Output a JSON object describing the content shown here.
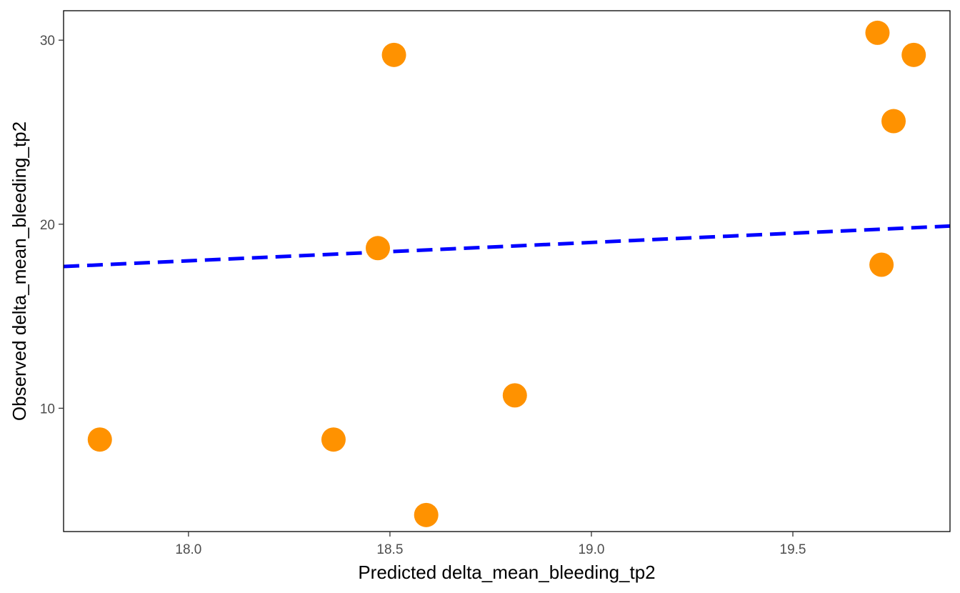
{
  "chart_data": {
    "type": "scatter",
    "title": "",
    "xlabel": "Predicted delta_mean_bleeding_tp2",
    "ylabel": "Observed delta_mean_bleeding_tp2",
    "xlim": [
      17.69,
      19.89
    ],
    "ylim": [
      3.3,
      31.6
    ],
    "x_ticks": [
      18.0,
      18.5,
      19.0,
      19.5
    ],
    "x_tick_labels": [
      "18.0",
      "18.5",
      "19.0",
      "19.5"
    ],
    "y_ticks": [
      10,
      20,
      30
    ],
    "y_tick_labels": [
      "10",
      "20",
      "30"
    ],
    "grid": false,
    "legend": "none",
    "point_color": "#FF9200",
    "line_color": "#0000FF",
    "series": [
      {
        "values": [
          {
            "x": 17.78,
            "y": 8.3
          },
          {
            "x": 18.36,
            "y": 8.3
          },
          {
            "x": 18.47,
            "y": 18.7
          },
          {
            "x": 18.51,
            "y": 29.2
          },
          {
            "x": 18.59,
            "y": 4.2
          },
          {
            "x": 18.81,
            "y": 10.7
          },
          {
            "x": 19.71,
            "y": 30.4
          },
          {
            "x": 19.72,
            "y": 17.8
          },
          {
            "x": 19.75,
            "y": 25.6
          },
          {
            "x": 19.8,
            "y": 29.2
          }
        ]
      }
    ],
    "fit_line": {
      "style": "dashed",
      "points": [
        {
          "x": 17.69,
          "y": 17.7
        },
        {
          "x": 19.89,
          "y": 19.9
        }
      ]
    }
  }
}
